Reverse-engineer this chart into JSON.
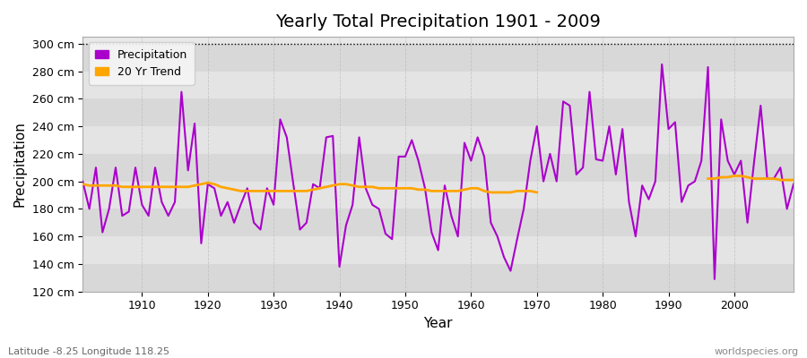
{
  "title": "Yearly Total Precipitation 1901 - 2009",
  "xlabel": "Year",
  "ylabel": "Precipitation",
  "subtitle_lat_lon": "Latitude -8.25 Longitude 118.25",
  "source": "worldspecies.org",
  "ylim": [
    120,
    305
  ],
  "yticks": [
    120,
    140,
    160,
    180,
    200,
    220,
    240,
    260,
    280,
    300
  ],
  "ytick_labels": [
    "120 cm",
    "140 cm",
    "160 cm",
    "180 cm",
    "200 cm",
    "220 cm",
    "240 cm",
    "260 cm",
    "280 cm",
    "300 cm"
  ],
  "xlim": [
    1901,
    2009
  ],
  "xticks": [
    1910,
    1920,
    1930,
    1940,
    1950,
    1960,
    1970,
    1980,
    1990,
    2000
  ],
  "precip_color": "#AA00CC",
  "trend_color": "#FFA500",
  "fig_bg_color": "#FFFFFF",
  "plot_bg_color": "#E8E8E8",
  "years": [
    1901,
    1902,
    1903,
    1904,
    1905,
    1906,
    1907,
    1908,
    1909,
    1910,
    1911,
    1912,
    1913,
    1914,
    1915,
    1916,
    1917,
    1918,
    1919,
    1920,
    1921,
    1922,
    1923,
    1924,
    1925,
    1926,
    1927,
    1928,
    1929,
    1930,
    1931,
    1932,
    1933,
    1934,
    1935,
    1936,
    1937,
    1938,
    1939,
    1940,
    1941,
    1942,
    1943,
    1944,
    1945,
    1946,
    1947,
    1948,
    1949,
    1950,
    1951,
    1952,
    1953,
    1954,
    1955,
    1956,
    1957,
    1958,
    1959,
    1960,
    1961,
    1962,
    1963,
    1964,
    1965,
    1966,
    1967,
    1968,
    1969,
    1970,
    1971,
    1972,
    1973,
    1974,
    1975,
    1976,
    1977,
    1978,
    1979,
    1980,
    1981,
    1982,
    1983,
    1984,
    1985,
    1986,
    1987,
    1988,
    1989,
    1990,
    1991,
    1992,
    1993,
    1994,
    1995,
    1996,
    1997,
    1998,
    1999,
    2000,
    2001,
    2002,
    2003,
    2004,
    2005,
    2006,
    2007,
    2008,
    2009
  ],
  "precip": [
    200,
    180,
    210,
    163,
    180,
    210,
    175,
    178,
    210,
    183,
    175,
    210,
    185,
    175,
    185,
    265,
    208,
    242,
    155,
    198,
    195,
    175,
    185,
    170,
    183,
    195,
    170,
    165,
    195,
    183,
    245,
    232,
    198,
    165,
    170,
    198,
    195,
    232,
    233,
    138,
    168,
    183,
    232,
    195,
    183,
    180,
    162,
    158,
    218,
    218,
    230,
    215,
    195,
    163,
    150,
    197,
    175,
    160,
    228,
    215,
    232,
    218,
    170,
    160,
    145,
    135,
    158,
    180,
    215,
    240,
    200,
    220,
    200,
    258,
    255,
    205,
    210,
    265,
    216,
    215,
    240,
    205,
    238,
    185,
    160,
    197,
    187,
    200,
    285,
    238,
    243,
    185,
    197,
    200,
    215,
    283,
    129,
    245,
    215,
    205,
    215,
    170,
    214,
    255,
    202,
    202,
    210,
    180,
    198
  ],
  "trend": [
    198,
    197,
    197,
    197,
    197,
    197,
    196,
    196,
    196,
    196,
    196,
    196,
    196,
    196,
    196,
    196,
    196,
    197,
    198,
    199,
    198,
    196,
    195,
    194,
    193,
    193,
    193,
    193,
    193,
    193,
    193,
    193,
    193,
    193,
    193,
    194,
    195,
    196,
    197,
    198,
    198,
    197,
    196,
    196,
    196,
    195,
    195,
    195,
    195,
    195,
    195,
    194,
    194,
    193,
    193,
    193,
    193,
    193,
    194,
    195,
    195,
    193,
    192,
    192,
    192,
    192,
    193,
    193,
    193,
    192,
    null,
    null,
    null,
    null,
    null,
    null,
    null,
    null,
    null,
    null,
    null,
    null,
    null,
    null,
    null,
    null,
    null,
    null,
    null,
    null,
    null,
    null,
    null,
    null,
    null,
    202,
    202,
    203,
    203,
    204,
    204,
    203,
    202,
    202,
    202,
    202,
    201,
    201,
    201
  ],
  "band_colors": [
    "#D8D8D8",
    "#E4E4E4"
  ]
}
